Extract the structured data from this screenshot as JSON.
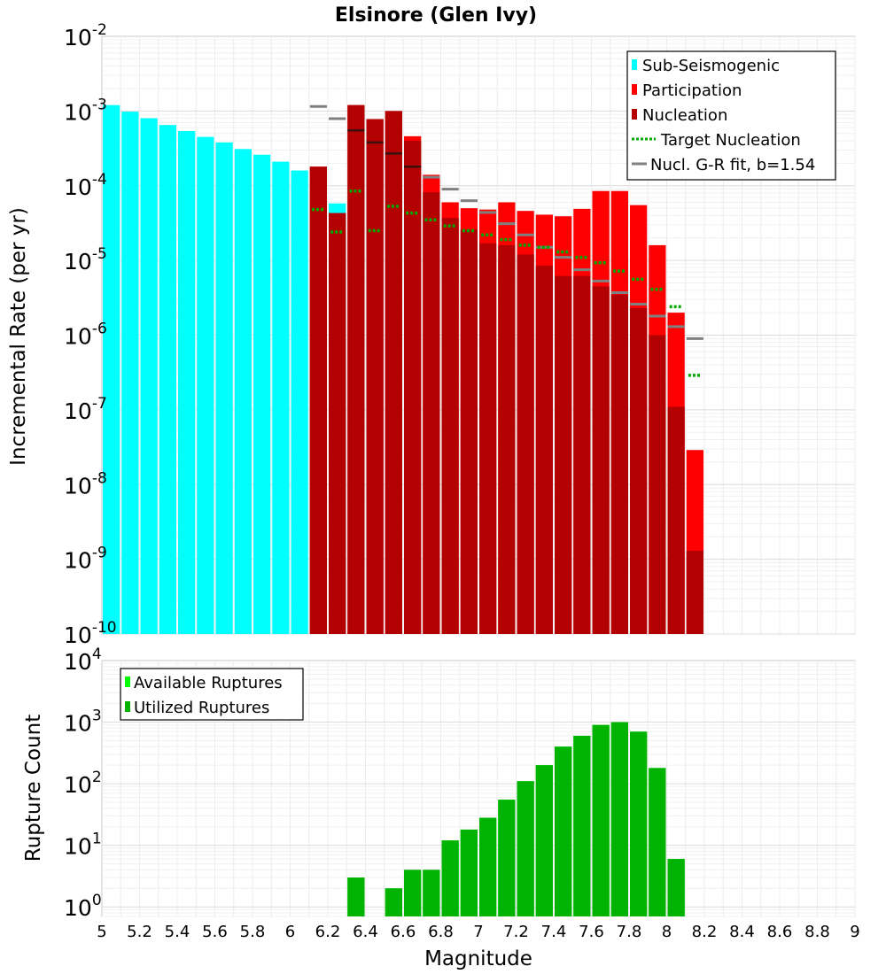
{
  "chart_data": [
    {
      "type": "bar",
      "title": "Elsinore (Glen Ivy)",
      "ylabel": "Incremental Rate (per yr)",
      "xlabel": "",
      "xlim": [
        5,
        9
      ],
      "ylim": [
        1e-10,
        0.01
      ],
      "yscale": "log",
      "bin_width": 0.1,
      "legend_position": "top-right",
      "legend": [
        "Sub-Seismogenic",
        "Participation",
        "Nucleation",
        "Target Nucleation",
        "Nucl. G-R fit, b=1.54"
      ],
      "y_ticks": [
        {
          "base": "10",
          "exp": "-10"
        },
        {
          "base": "10",
          "exp": "-9"
        },
        {
          "base": "10",
          "exp": "-8"
        },
        {
          "base": "10",
          "exp": "-7"
        },
        {
          "base": "10",
          "exp": "-6"
        },
        {
          "base": "10",
          "exp": "-5"
        },
        {
          "base": "10",
          "exp": "-4"
        },
        {
          "base": "10",
          "exp": "-3"
        },
        {
          "base": "10",
          "exp": "-2"
        }
      ],
      "series": [
        {
          "name": "Sub-Seismogenic",
          "color": "#00ffff",
          "x": [
            5.05,
            5.15,
            5.25,
            5.35,
            5.45,
            5.55,
            5.65,
            5.75,
            5.85,
            5.95,
            6.05,
            6.15,
            6.25
          ],
          "values": [
            0.0012,
            0.00098,
            0.0008,
            0.00065,
            0.00054,
            0.00045,
            0.00038,
            0.00031,
            0.00026,
            0.00021,
            0.00016,
            0.00012,
            5.8e-05
          ]
        },
        {
          "name": "Participation",
          "color": "#ff0000",
          "x": [
            6.15,
            6.25,
            6.35,
            6.45,
            6.55,
            6.65,
            6.75,
            6.85,
            6.95,
            7.05,
            7.15,
            7.25,
            7.35,
            7.45,
            7.55,
            7.65,
            7.75,
            7.85,
            7.95,
            8.05,
            8.15
          ],
          "values": [
            0.00018,
            4.3e-05,
            0.0012,
            0.00078,
            0.001,
            0.00046,
            0.00014,
            6e-05,
            5e-05,
            4.8e-05,
            6e-05,
            4.6e-05,
            4.1e-05,
            3.9e-05,
            4.9e-05,
            8.5e-05,
            8.5e-05,
            5.5e-05,
            1.6e-05,
            2e-06,
            2.9e-08
          ]
        },
        {
          "name": "Nucleation",
          "color": "#b30000",
          "x": [
            6.15,
            6.25,
            6.35,
            6.45,
            6.55,
            6.65,
            6.75,
            6.85,
            6.95,
            7.05,
            7.15,
            7.25,
            7.35,
            7.45,
            7.55,
            7.65,
            7.75,
            7.85,
            7.95,
            8.05,
            8.15
          ],
          "values": [
            0.00018,
            4.3e-05,
            0.0012,
            0.00078,
            0.001,
            0.0004,
            8.2e-05,
            3.7e-05,
            2.6e-05,
            1.7e-05,
            1.6e-05,
            1.2e-05,
            8.5e-06,
            6.2e-06,
            6.2e-06,
            4.5e-06,
            3.5e-06,
            2.3e-06,
            1e-06,
            1.1e-07,
            1.3e-09
          ]
        },
        {
          "name": "Target Nucleation",
          "color": "#00aa00",
          "x": [
            6.15,
            6.25,
            6.35,
            6.45,
            6.55,
            6.65,
            6.75,
            6.85,
            6.95,
            7.05,
            7.15,
            7.25,
            7.35,
            7.45,
            7.55,
            7.65,
            7.75,
            7.85,
            7.95,
            8.05,
            8.15
          ],
          "values": [
            4.8e-05,
            2.4e-05,
            8.5e-05,
            2.5e-05,
            5.3e-05,
            4.3e-05,
            3.5e-05,
            2.9e-05,
            2.5e-05,
            2.2e-05,
            1.9e-05,
            1.6e-05,
            1.5e-05,
            1.3e-05,
            1.1e-05,
            9.3e-06,
            7.2e-06,
            5.6e-06,
            4.1e-06,
            2.4e-06,
            2.9e-07
          ]
        },
        {
          "name": "Nucl. G-R fit, b=1.54",
          "color": "#808080",
          "x": [
            6.15,
            6.25,
            6.35,
            6.45,
            6.55,
            6.65,
            6.75,
            6.85,
            6.95,
            7.05,
            7.15,
            7.25,
            7.35,
            7.45,
            7.55,
            7.65,
            7.75,
            7.85,
            7.95,
            8.05,
            8.15
          ],
          "values": [
            0.00115,
            0.00079,
            0.00055,
            0.00038,
            0.00027,
            0.00018,
            0.00013,
            9e-05,
            6.3e-05,
            4.4e-05,
            3.1e-05,
            2.2e-05,
            1.5e-05,
            1.1e-05,
            7.5e-06,
            5.3e-06,
            3.7e-06,
            2.6e-06,
            1.8e-06,
            1.3e-06,
            9e-07
          ]
        }
      ]
    },
    {
      "type": "bar",
      "title": "",
      "ylabel": "Rupture Count",
      "xlabel": "Magnitude",
      "xlim": [
        5,
        9
      ],
      "ylim": [
        0.7,
        10000
      ],
      "yscale": "log",
      "bin_width": 0.1,
      "legend_position": "top-left",
      "legend": [
        "Available Ruptures",
        "Utilized Ruptures"
      ],
      "x_ticks": [
        "5",
        "5.2",
        "5.4",
        "5.6",
        "5.8",
        "6",
        "6.2",
        "6.4",
        "6.6",
        "6.8",
        "7",
        "7.2",
        "7.4",
        "7.6",
        "7.8",
        "8",
        "8.2",
        "8.4",
        "8.6",
        "8.8",
        "9"
      ],
      "y_ticks": [
        {
          "base": "10",
          "exp": "0"
        },
        {
          "base": "10",
          "exp": "1"
        },
        {
          "base": "10",
          "exp": "2"
        },
        {
          "base": "10",
          "exp": "3"
        },
        {
          "base": "10",
          "exp": "4"
        }
      ],
      "series": [
        {
          "name": "Available Ruptures",
          "color": "#00ff00",
          "x": [
            6.35,
            6.55,
            6.65,
            6.75,
            6.85,
            6.95,
            7.05,
            7.15,
            7.25,
            7.35,
            7.45,
            7.55,
            7.65,
            7.75,
            7.85,
            7.95,
            8.05
          ],
          "values": [
            3,
            2,
            4,
            4,
            12,
            18,
            28,
            55,
            110,
            200,
            400,
            600,
            900,
            1000,
            700,
            180,
            6
          ]
        },
        {
          "name": "Utilized Ruptures",
          "color": "#00b300",
          "x": [
            6.35,
            6.55,
            6.65,
            6.75,
            6.85,
            6.95,
            7.05,
            7.15,
            7.25,
            7.35,
            7.45,
            7.55,
            7.65,
            7.75,
            7.85,
            7.95,
            8.05
          ],
          "values": [
            3,
            2,
            4,
            4,
            12,
            18,
            28,
            55,
            110,
            200,
            400,
            600,
            900,
            1000,
            700,
            180,
            6
          ]
        }
      ]
    }
  ]
}
